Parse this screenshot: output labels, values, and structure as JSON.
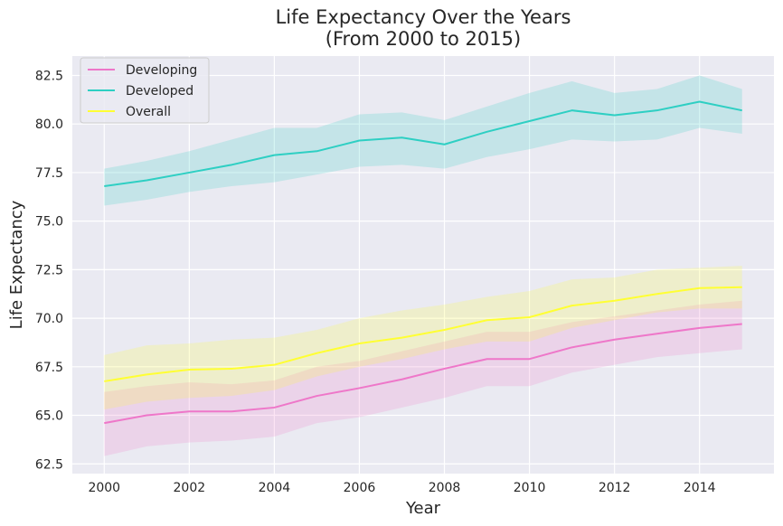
{
  "chart_data": {
    "type": "line",
    "title": "Life Expectancy Over the Years",
    "subtitle": "(From 2000 to 2015)",
    "xlabel": "Year",
    "ylabel": "Life Expectancy",
    "xlim": [
      1999.25,
      2015.75
    ],
    "ylim": [
      62.0,
      83.5
    ],
    "x_ticks": [
      2000,
      2002,
      2004,
      2006,
      2008,
      2010,
      2012,
      2014
    ],
    "y_ticks": [
      62.5,
      65.0,
      67.5,
      70.0,
      72.5,
      75.0,
      77.5,
      80.0,
      82.5
    ],
    "x_tick_labels": [
      "2000",
      "2002",
      "2004",
      "2006",
      "2008",
      "2010",
      "2012",
      "2014"
    ],
    "y_tick_labels": [
      "62.5",
      "65.0",
      "67.5",
      "70.0",
      "72.5",
      "75.0",
      "77.5",
      "80.0",
      "82.5"
    ],
    "grid": true,
    "legend_position": "top-left",
    "x": [
      2000,
      2001,
      2002,
      2003,
      2004,
      2005,
      2006,
      2007,
      2008,
      2009,
      2010,
      2011,
      2012,
      2013,
      2014,
      2015
    ],
    "series": [
      {
        "name": "Developing",
        "color": "#ee77c9",
        "values": [
          64.6,
          65.0,
          65.2,
          65.2,
          65.4,
          66.0,
          66.4,
          66.85,
          67.4,
          67.9,
          67.9,
          68.5,
          68.9,
          69.2,
          69.5,
          69.7
        ],
        "ci_lower": [
          62.9,
          63.4,
          63.6,
          63.7,
          63.9,
          64.6,
          64.9,
          65.4,
          65.9,
          66.5,
          66.5,
          67.2,
          67.6,
          68.0,
          68.2,
          68.4
        ],
        "ci_upper": [
          66.2,
          66.5,
          66.7,
          66.6,
          66.8,
          67.5,
          67.8,
          68.3,
          68.8,
          69.3,
          69.3,
          69.8,
          70.1,
          70.4,
          70.7,
          70.9
        ]
      },
      {
        "name": "Developed",
        "color": "#2ecfc3",
        "values": [
          76.8,
          77.1,
          77.5,
          77.9,
          78.4,
          78.6,
          79.15,
          79.3,
          78.95,
          79.6,
          80.15,
          80.7,
          80.45,
          80.7,
          81.15,
          80.7
        ],
        "ci_lower": [
          75.8,
          76.1,
          76.5,
          76.8,
          77.0,
          77.4,
          77.8,
          77.9,
          77.7,
          78.3,
          78.7,
          79.2,
          79.1,
          79.2,
          79.8,
          79.5
        ],
        "ci_upper": [
          77.7,
          78.1,
          78.6,
          79.2,
          79.8,
          79.8,
          80.5,
          80.6,
          80.2,
          80.9,
          81.6,
          82.2,
          81.6,
          81.8,
          82.5,
          81.8
        ]
      },
      {
        "name": "Overall",
        "color": "#ffff33",
        "values": [
          66.75,
          67.1,
          67.35,
          67.4,
          67.6,
          68.2,
          68.7,
          69.0,
          69.4,
          69.9,
          70.05,
          70.65,
          70.9,
          71.25,
          71.55,
          71.6
        ],
        "ci_lower": [
          65.3,
          65.7,
          65.9,
          66.0,
          66.3,
          67.0,
          67.5,
          67.9,
          68.4,
          68.8,
          68.8,
          69.5,
          69.9,
          70.3,
          70.5,
          70.5
        ],
        "ci_upper": [
          68.1,
          68.6,
          68.7,
          68.9,
          69.0,
          69.4,
          70.0,
          70.4,
          70.7,
          71.1,
          71.4,
          72.0,
          72.1,
          72.5,
          72.6,
          72.7
        ]
      }
    ]
  }
}
